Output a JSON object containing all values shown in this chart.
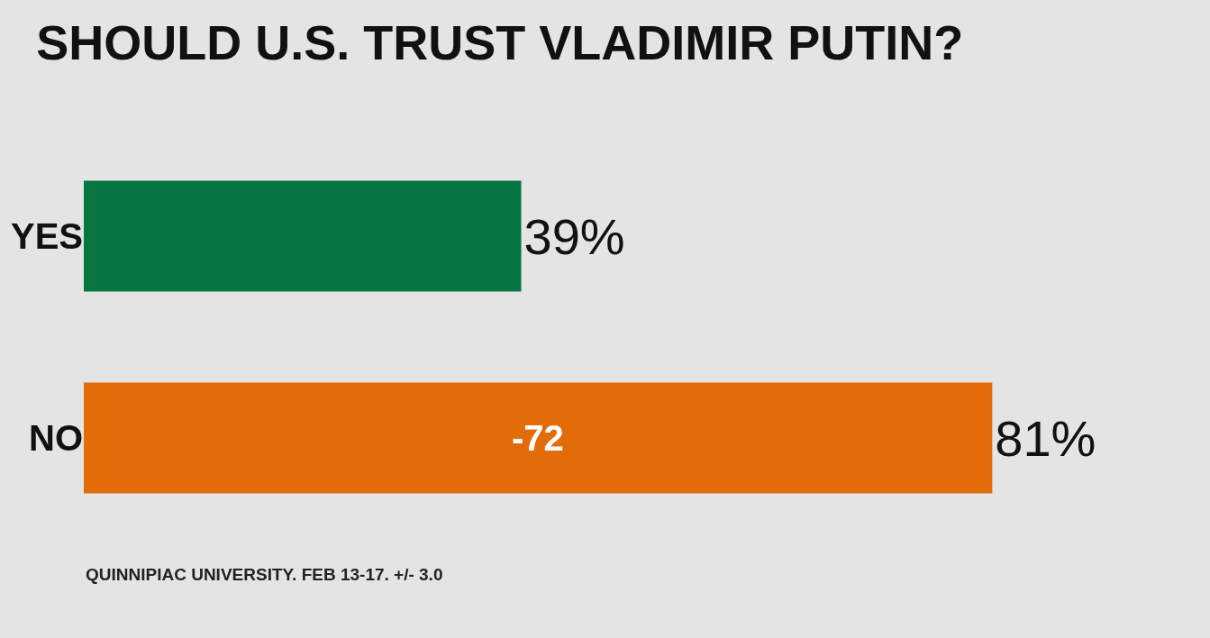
{
  "chart_data": {
    "type": "bar",
    "orientation": "horizontal",
    "title": "SHOULD U.S. TRUST VLADIMIR PUTIN?",
    "categories": [
      "YES",
      "NO"
    ],
    "values": [
      39,
      81
    ],
    "colors": [
      "#077540",
      "#e36c0a"
    ],
    "value_labels": [
      "39%",
      "81%"
    ],
    "annotations": [
      "-72",
      "QUINNIPIAC UNIVERSITY. FEB 13-17. +/- 3.0"
    ],
    "grid": false,
    "legend": false
  }
}
